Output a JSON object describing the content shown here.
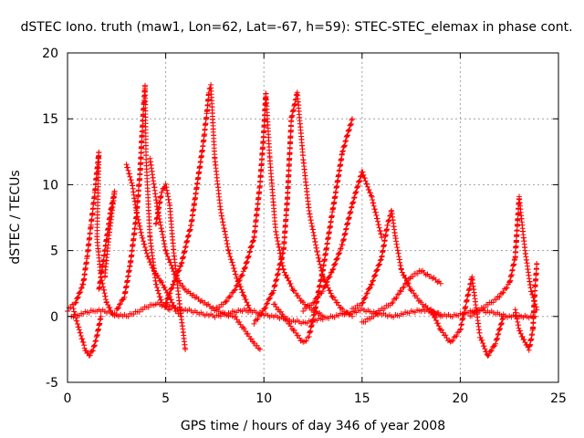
{
  "chart_data": {
    "type": "scatter",
    "title": "dSTEC Iono. truth (maw1, Lon=62, Lat=-67, h=59): STEC-STEC_elemax in phase cont.",
    "xlabel": "GPS time / hours of day 346 of year 2008",
    "ylabel": "dSTEC  / TECUs",
    "xlim": [
      0,
      25
    ],
    "ylim": [
      -5,
      20
    ],
    "xticks": [
      0,
      5,
      10,
      15,
      20,
      25
    ],
    "yticks": [
      -5,
      0,
      5,
      10,
      15,
      20
    ],
    "grid": true,
    "marker": "+",
    "color": "#ff0000",
    "series": [
      {
        "x": [
          0.0,
          0.4,
          0.8,
          1.0,
          1.2,
          1.4,
          1.6,
          1.5,
          1.7,
          2.0,
          2.3,
          2.6
        ],
        "y": [
          0.5,
          1.0,
          2.5,
          4.5,
          7.0,
          9.5,
          12.5,
          6.0,
          3.0,
          1.0,
          0.2,
          0.0
        ]
      },
      {
        "x": [
          0.3,
          0.6,
          0.9,
          1.1,
          1.3,
          1.5,
          1.7
        ],
        "y": [
          0.5,
          -1.0,
          -2.5,
          -3.0,
          -2.5,
          -1.5,
          0.0
        ]
      },
      {
        "x": [
          1.6,
          1.9,
          2.2,
          2.4,
          2.1,
          1.9
        ],
        "y": [
          2.0,
          5.0,
          8.0,
          9.5,
          6.0,
          3.0
        ]
      },
      {
        "x": [
          2.5,
          2.9,
          3.2,
          3.5,
          3.7,
          3.8,
          3.9,
          3.95,
          4.0,
          4.2,
          4.5,
          4.8,
          5.2
        ],
        "y": [
          0.5,
          1.5,
          4.0,
          7.5,
          11.0,
          14.0,
          16.5,
          17.5,
          12.0,
          6.0,
          2.5,
          1.0,
          0.5
        ]
      },
      {
        "x": [
          3.0,
          3.3,
          3.5,
          3.8,
          4.1,
          4.4,
          4.8,
          5.2,
          5.5,
          5.8
        ],
        "y": [
          11.5,
          10.0,
          8.0,
          6.0,
          4.5,
          3.5,
          2.5,
          1.5,
          0.5,
          0.0
        ]
      },
      {
        "x": [
          4.5,
          4.8,
          5.0,
          5.2,
          5.4,
          5.7,
          6.0
        ],
        "y": [
          7.0,
          9.5,
          10.0,
          8.5,
          5.0,
          1.0,
          -2.5
        ]
      },
      {
        "x": [
          5.0,
          5.4,
          5.8,
          6.3,
          6.6,
          6.9,
          7.1,
          7.2,
          7.3,
          7.5,
          7.8,
          8.2,
          8.6,
          9.0,
          9.3
        ],
        "y": [
          1.0,
          2.5,
          4.0,
          7.0,
          10.0,
          13.0,
          15.5,
          17.0,
          17.5,
          12.0,
          8.0,
          5.0,
          3.0,
          1.5,
          0.5
        ]
      },
      {
        "x": [
          4.2,
          4.6,
          5.0,
          5.5,
          6.0,
          6.5,
          7.0,
          7.5,
          8.0,
          8.5,
          9.0,
          9.5,
          9.8
        ],
        "y": [
          12.0,
          8.0,
          5.0,
          3.0,
          2.0,
          1.5,
          1.0,
          0.5,
          0.2,
          0.0,
          -1.0,
          -2.0,
          -2.5
        ]
      },
      {
        "x": [
          7.5,
          8.0,
          8.5,
          9.0,
          9.5,
          9.8,
          10.0,
          10.1,
          10.3,
          10.6,
          11.0,
          11.5,
          12.0,
          12.5,
          13.0
        ],
        "y": [
          0.5,
          1.0,
          2.0,
          3.5,
          6.0,
          10.0,
          14.0,
          17.0,
          12.0,
          6.5,
          3.5,
          2.0,
          1.0,
          0.5,
          0.0
        ]
      },
      {
        "x": [
          9.5,
          10.0,
          10.5,
          11.0,
          11.2,
          11.4,
          11.7,
          12.0,
          12.3,
          12.7,
          13.0,
          13.5,
          14.0,
          14.5
        ],
        "y": [
          -0.5,
          0.5,
          2.0,
          5.0,
          9.0,
          15.0,
          17.0,
          12.0,
          8.0,
          5.0,
          3.0,
          1.5,
          0.5,
          0.0
        ]
      },
      {
        "x": [
          10.5,
          11.0,
          11.5,
          12.0,
          12.3,
          12.6,
          13.0,
          13.5,
          14.0,
          14.5
        ],
        "y": [
          1.0,
          0.0,
          -1.0,
          -2.0,
          -1.5,
          0.5,
          3.5,
          8.0,
          12.5,
          15.0
        ]
      },
      {
        "x": [
          12.0,
          12.5,
          13.0,
          13.5,
          14.0,
          14.5,
          15.0,
          15.5,
          16.0
        ],
        "y": [
          0.5,
          1.0,
          2.0,
          3.5,
          5.5,
          8.5,
          11.0,
          9.0,
          6.0
        ]
      },
      {
        "x": [
          14.5,
          15.0,
          15.5,
          16.0,
          16.3,
          16.5,
          16.7,
          17.0,
          17.5,
          18.0,
          18.5,
          19.0
        ],
        "y": [
          0.5,
          1.0,
          2.5,
          4.5,
          7.0,
          8.0,
          6.0,
          3.5,
          2.0,
          1.0,
          0.5,
          0.0
        ]
      },
      {
        "x": [
          15.0,
          15.5,
          16.0,
          16.5,
          17.0,
          17.5,
          18.0,
          18.5,
          19.0
        ],
        "y": [
          -0.5,
          0.0,
          0.5,
          1.0,
          2.0,
          3.0,
          3.5,
          3.0,
          2.5
        ]
      },
      {
        "x": [
          18.5,
          19.0,
          19.5,
          20.0,
          20.3,
          20.6,
          21.0,
          21.4,
          21.8,
          22.2
        ],
        "y": [
          0.5,
          -1.0,
          -2.0,
          -1.0,
          1.0,
          3.0,
          -1.5,
          -3.0,
          -2.0,
          0.0
        ]
      },
      {
        "x": [
          20.5,
          21.0,
          21.5,
          22.0,
          22.5,
          22.8,
          23.0,
          23.3,
          23.6,
          23.9
        ],
        "y": [
          0.0,
          0.5,
          1.0,
          1.5,
          2.5,
          4.5,
          9.0,
          5.0,
          2.0,
          0.5
        ]
      },
      {
        "x": [
          22.8,
          23.0,
          23.3,
          23.5,
          23.7,
          23.8,
          23.9
        ],
        "y": [
          0.5,
          -1.0,
          -2.0,
          -2.5,
          -1.0,
          2.0,
          4.0
        ]
      },
      {
        "x": [
          0.2,
          1.5,
          3.0,
          4.5,
          6.0,
          7.5,
          9.0,
          10.5,
          12.0,
          13.5,
          15.0,
          16.5,
          18.0,
          19.5,
          21.0,
          22.5,
          23.8
        ],
        "y": [
          0.0,
          0.5,
          0.0,
          1.0,
          0.5,
          0.0,
          0.5,
          0.0,
          -0.5,
          0.0,
          0.5,
          0.0,
          0.5,
          0.0,
          0.5,
          0.0,
          0.0
        ]
      }
    ]
  }
}
